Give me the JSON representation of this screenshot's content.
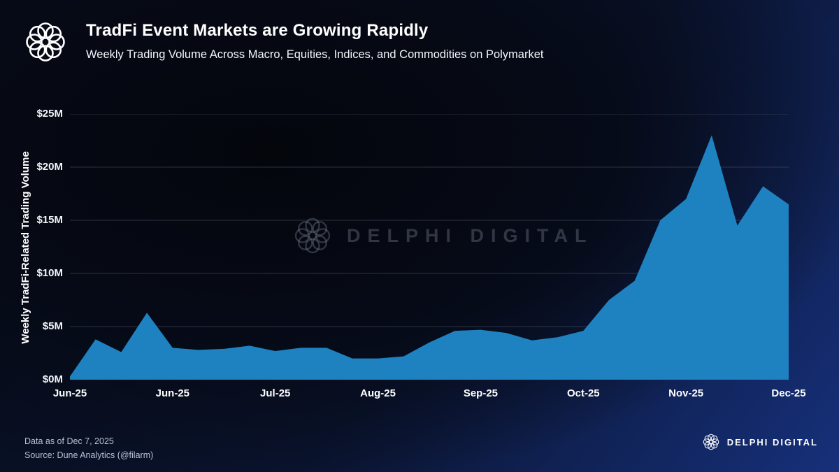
{
  "header": {
    "title": "TradFi Event Markets are Growing Rapidly",
    "subtitle": "Weekly Trading Volume Across Macro, Equities, Indices, and Commodities on Polymarket"
  },
  "watermark": {
    "text": "DELPHI DIGITAL"
  },
  "footer": {
    "data_as_of": "Data as of Dec 7, 2025",
    "source": "Source: Dune Analytics (@filarm)",
    "brand": "DELPHI DIGITAL"
  },
  "chart_data": {
    "type": "area",
    "title": "TradFi Event Markets are Growing Rapidly",
    "subtitle": "Weekly Trading Volume Across Macro, Equities, Indices, and Commodities on Polymarket",
    "xlabel": "",
    "ylabel": "Weekly TradFi-Related Trading Volume",
    "unit": "$M",
    "ylim": [
      0,
      25
    ],
    "grid": "horizontal",
    "legend": "none",
    "area_color": "#1e82c1",
    "grid_color": "#4d5464",
    "y_ticks": [
      {
        "value": 0,
        "label": "$0M"
      },
      {
        "value": 5,
        "label": "$5M"
      },
      {
        "value": 10,
        "label": "$10M"
      },
      {
        "value": 15,
        "label": "$15M"
      },
      {
        "value": 20,
        "label": "$20M"
      },
      {
        "value": 25,
        "label": "$25M"
      }
    ],
    "x_tick_labels": [
      "Jun-25",
      "Jun-25",
      "Jul-25",
      "Aug-25",
      "Sep-25",
      "Oct-25",
      "Nov-25",
      "Dec-25"
    ],
    "series_name": "Weekly TradFi-related trading volume ($M), weekly points Jun-25 through Dec-25",
    "values_millions": [
      0.3,
      3.8,
      2.6,
      6.3,
      3.0,
      2.8,
      2.9,
      3.2,
      2.7,
      3.0,
      3.0,
      2.0,
      2.0,
      2.2,
      3.5,
      4.6,
      4.7,
      4.4,
      3.7,
      4.0,
      4.6,
      7.5,
      9.3,
      15.0,
      17.0,
      23.0,
      14.5,
      18.2,
      16.5
    ]
  }
}
